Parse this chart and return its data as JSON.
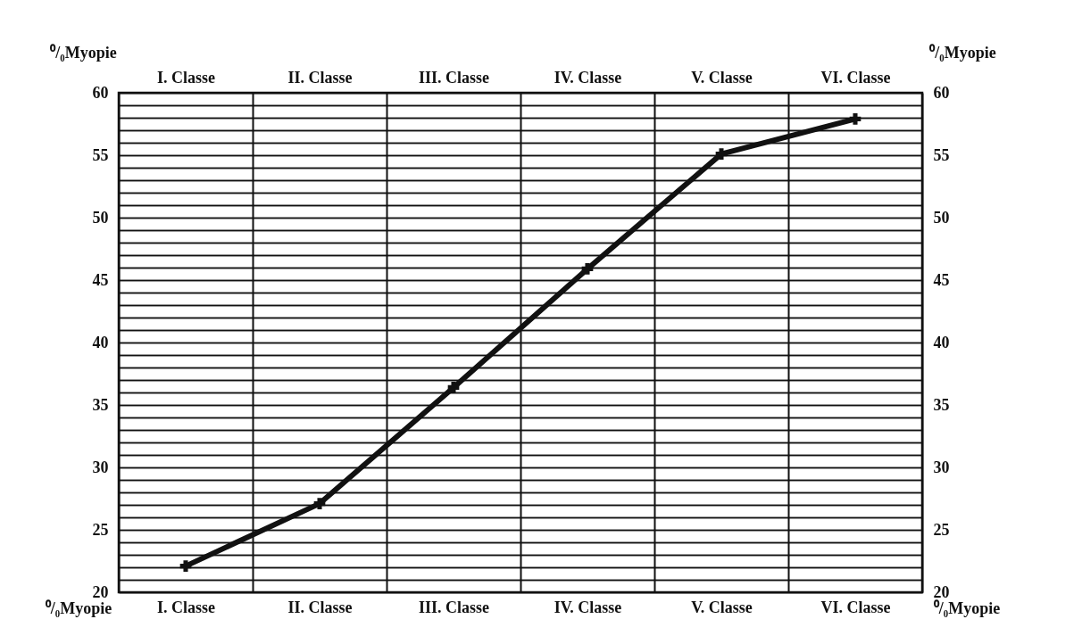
{
  "chart_data": {
    "type": "line",
    "ylabel": "⁰/₀Myopie",
    "y2label": "⁰/₀Myopie",
    "annotations": [
      "⁰/₀Myopie",
      "⁰/₀Myopie"
    ],
    "categories": [
      "I. Classe",
      "II. Classe",
      "III. Classe",
      "IV. Classe",
      "V. Classe",
      "VI. Classe"
    ],
    "series": [
      {
        "color": "#111111",
        "values": [
          22.1,
          27.1,
          36.4,
          45.9,
          55.1,
          57.9
        ]
      }
    ],
    "ylim": [
      20,
      60
    ],
    "yticks": [
      20,
      {
        "value": 21,
        "label": null
      },
      {
        "value": 22,
        "label": null
      },
      {
        "value": 23,
        "label": null
      },
      {
        "value": 24,
        "label": null
      },
      25,
      {
        "value": 26,
        "label": null
      },
      {
        "value": 27,
        "label": null
      },
      {
        "value": 28,
        "label": null
      },
      {
        "value": 29,
        "label": null
      },
      30,
      {
        "value": 31,
        "label": null
      },
      {
        "value": 32,
        "label": null
      },
      {
        "value": 33,
        "label": null
      },
      {
        "value": 34,
        "label": null
      },
      35,
      {
        "value": 36,
        "label": null
      },
      {
        "value": 37,
        "label": null
      },
      {
        "value": 38,
        "label": null
      },
      {
        "value": 39,
        "label": null
      },
      40,
      {
        "value": 41,
        "label": null
      },
      {
        "value": 42,
        "label": null
      },
      {
        "value": 43,
        "label": null
      },
      {
        "value": 44,
        "label": null
      },
      45,
      {
        "value": 46,
        "label": null
      },
      {
        "value": 47,
        "label": null
      },
      {
        "value": 48,
        "label": null
      },
      {
        "value": 49,
        "label": null
      },
      50,
      {
        "value": 51,
        "label": null
      },
      {
        "value": 52,
        "label": null
      },
      {
        "value": 53,
        "label": null
      },
      {
        "value": 54,
        "label": null
      },
      55,
      {
        "value": 56,
        "label": null
      },
      {
        "value": 57,
        "label": null
      },
      {
        "value": 58,
        "label": null
      },
      {
        "value": 59,
        "label": null
      },
      60
    ],
    "y2lim": [
      20,
      60
    ],
    "y2ticks": [
      20,
      {
        "value": 21,
        "label": null
      },
      {
        "value": 22,
        "label": null
      },
      {
        "value": 23,
        "label": null
      },
      {
        "value": 24,
        "label": null
      },
      25,
      {
        "value": 26,
        "label": null
      },
      {
        "value": 27,
        "label": null
      },
      {
        "value": 28,
        "label": null
      },
      {
        "value": 29,
        "label": null
      },
      30,
      {
        "value": 31,
        "label": null
      },
      {
        "value": 32,
        "label": null
      },
      {
        "value": 33,
        "label": null
      },
      {
        "value": 34,
        "label": null
      },
      35,
      {
        "value": 36,
        "label": null
      },
      {
        "value": 37,
        "label": null
      },
      {
        "value": 38,
        "label": null
      },
      {
        "value": 39,
        "label": null
      },
      40,
      {
        "value": 41,
        "label": null
      },
      {
        "value": 42,
        "label": null
      },
      {
        "value": 43,
        "label": null
      },
      {
        "value": 44,
        "label": null
      },
      45,
      {
        "value": 46,
        "label": null
      },
      {
        "value": 47,
        "label": null
      },
      {
        "value": 48,
        "label": null
      },
      {
        "value": 49,
        "label": null
      },
      50,
      {
        "value": 51,
        "label": null
      },
      {
        "value": 52,
        "label": null
      },
      {
        "value": 53,
        "label": null
      },
      {
        "value": 54,
        "label": null
      },
      55,
      {
        "value": 56,
        "label": null
      },
      {
        "value": 57,
        "label": null
      },
      {
        "value": 58,
        "label": null
      },
      {
        "value": 59,
        "label": null
      },
      60
    ],
    "grid": true,
    "marker": "cross",
    "line_style": "solid"
  }
}
